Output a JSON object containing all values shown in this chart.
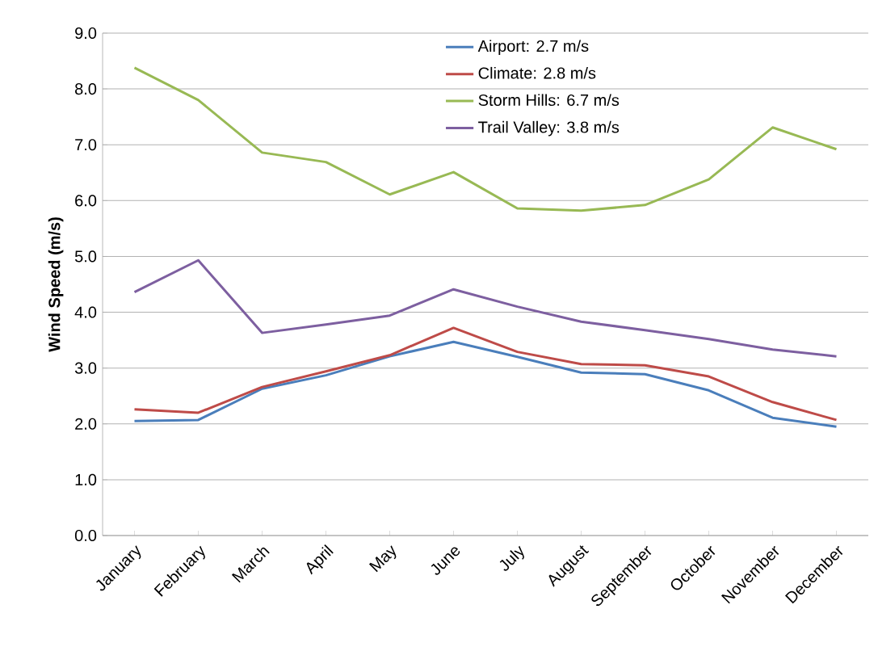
{
  "chart_data": {
    "type": "line",
    "ylabel": "Wind Speed (m/s)",
    "categories": [
      "January",
      "February",
      "March",
      "April",
      "May",
      "June",
      "July",
      "August",
      "September",
      "October",
      "November",
      "December"
    ],
    "series": [
      {
        "name": "Airport: 2.7 m/s",
        "color": "#4a7ebb",
        "values": [
          2.05,
          2.07,
          2.63,
          2.87,
          3.21,
          3.47,
          3.2,
          2.92,
          2.89,
          2.6,
          2.11,
          1.95
        ]
      },
      {
        "name": "Climate: 2.8 m/s",
        "color": "#be4b48",
        "values": [
          2.26,
          2.2,
          2.66,
          2.94,
          3.23,
          3.72,
          3.29,
          3.07,
          3.05,
          2.85,
          2.39,
          2.07
        ]
      },
      {
        "name": "Storm Hills: 6.7 m/s",
        "color": "#98b954",
        "values": [
          8.38,
          7.8,
          6.86,
          6.69,
          6.11,
          6.51,
          5.86,
          5.82,
          5.92,
          6.38,
          7.31,
          6.92
        ]
      },
      {
        "name": "Trail Valley: 3.8 m/s",
        "color": "#7d5fa0",
        "values": [
          4.36,
          4.93,
          3.63,
          3.78,
          3.94,
          4.41,
          4.1,
          3.83,
          3.68,
          3.52,
          3.33,
          3.21
        ]
      }
    ],
    "ylim": [
      0,
      9
    ],
    "yticks": [
      {
        "value": 0,
        "label": "0.0"
      },
      {
        "value": 1,
        "label": "1.0"
      },
      {
        "value": 2,
        "label": "2.0"
      },
      {
        "value": 3,
        "label": "3.0"
      },
      {
        "value": 4,
        "label": "4.0"
      },
      {
        "value": 5,
        "label": "5.0"
      },
      {
        "value": 6,
        "label": "6.0"
      },
      {
        "value": 7,
        "label": "7.0"
      },
      {
        "value": 8,
        "label": "8.0"
      },
      {
        "value": 9,
        "label": "9.0"
      }
    ],
    "grid": "y",
    "legend": "top"
  }
}
